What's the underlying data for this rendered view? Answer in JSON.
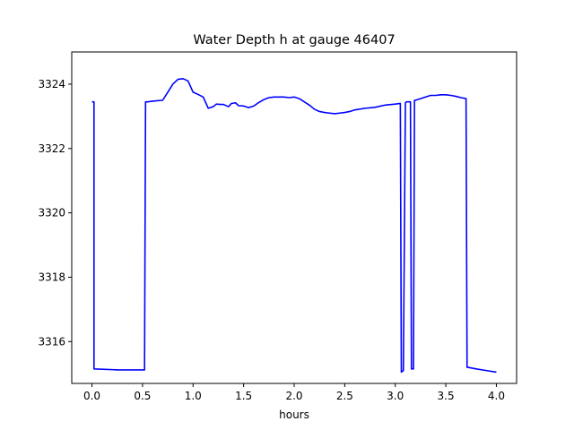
{
  "chart_data": {
    "type": "line",
    "title": "Water Depth h at gauge 46407",
    "xlabel": "hours",
    "ylabel": "",
    "xlim": [
      -0.2,
      4.2
    ],
    "ylim": [
      3314.7,
      3325.0
    ],
    "x_ticks": [
      0.0,
      0.5,
      1.0,
      1.5,
      2.0,
      2.5,
      3.0,
      3.5,
      4.0
    ],
    "x_tick_labels": [
      "0.0",
      "0.5",
      "1.0",
      "1.5",
      "2.0",
      "2.5",
      "3.0",
      "3.5",
      "4.0"
    ],
    "y_ticks": [
      3316,
      3318,
      3320,
      3322,
      3324
    ],
    "y_tick_labels": [
      "3316",
      "3318",
      "3320",
      "3322",
      "3324"
    ],
    "grid": false,
    "series": [
      {
        "color": "#0000ff",
        "x": [
          0.0,
          0.02,
          0.02,
          0.26,
          0.52,
          0.53,
          0.55,
          0.6,
          0.7,
          0.75,
          0.8,
          0.85,
          0.9,
          0.95,
          1.0,
          1.05,
          1.1,
          1.15,
          1.2,
          1.23,
          1.27,
          1.3,
          1.35,
          1.38,
          1.42,
          1.45,
          1.5,
          1.55,
          1.6,
          1.65,
          1.7,
          1.75,
          1.8,
          1.85,
          1.9,
          1.95,
          2.0,
          2.02,
          2.05,
          2.1,
          2.15,
          2.2,
          2.25,
          2.3,
          2.35,
          2.4,
          2.45,
          2.5,
          2.55,
          2.6,
          2.7,
          2.8,
          2.9,
          3.0,
          3.05,
          3.06,
          3.08,
          3.1,
          3.11,
          3.15,
          3.16,
          3.18,
          3.19,
          3.2,
          3.25,
          3.3,
          3.35,
          3.4,
          3.45,
          3.5,
          3.55,
          3.6,
          3.65,
          3.7,
          3.71,
          3.72,
          3.8,
          3.9,
          4.0
        ],
        "y": [
          3323.45,
          3323.45,
          3315.15,
          3315.12,
          3315.12,
          3323.45,
          3323.45,
          3323.47,
          3323.5,
          3323.75,
          3324.0,
          3324.15,
          3324.17,
          3324.1,
          3323.75,
          3323.68,
          3323.6,
          3323.25,
          3323.3,
          3323.38,
          3323.37,
          3323.37,
          3323.3,
          3323.4,
          3323.42,
          3323.33,
          3323.32,
          3323.27,
          3323.32,
          3323.43,
          3323.52,
          3323.58,
          3323.6,
          3323.6,
          3323.6,
          3323.58,
          3323.6,
          3323.58,
          3323.55,
          3323.45,
          3323.35,
          3323.22,
          3323.15,
          3323.12,
          3323.1,
          3323.08,
          3323.1,
          3323.12,
          3323.15,
          3323.2,
          3323.25,
          3323.28,
          3323.35,
          3323.38,
          3323.4,
          3315.05,
          3315.1,
          3323.42,
          3323.45,
          3323.45,
          3315.15,
          3315.15,
          3323.5,
          3323.5,
          3323.55,
          3323.6,
          3323.65,
          3323.65,
          3323.67,
          3323.67,
          3323.65,
          3323.62,
          3323.58,
          3323.55,
          3315.2,
          3315.2,
          3315.15,
          3315.1,
          3315.05
        ]
      }
    ]
  }
}
